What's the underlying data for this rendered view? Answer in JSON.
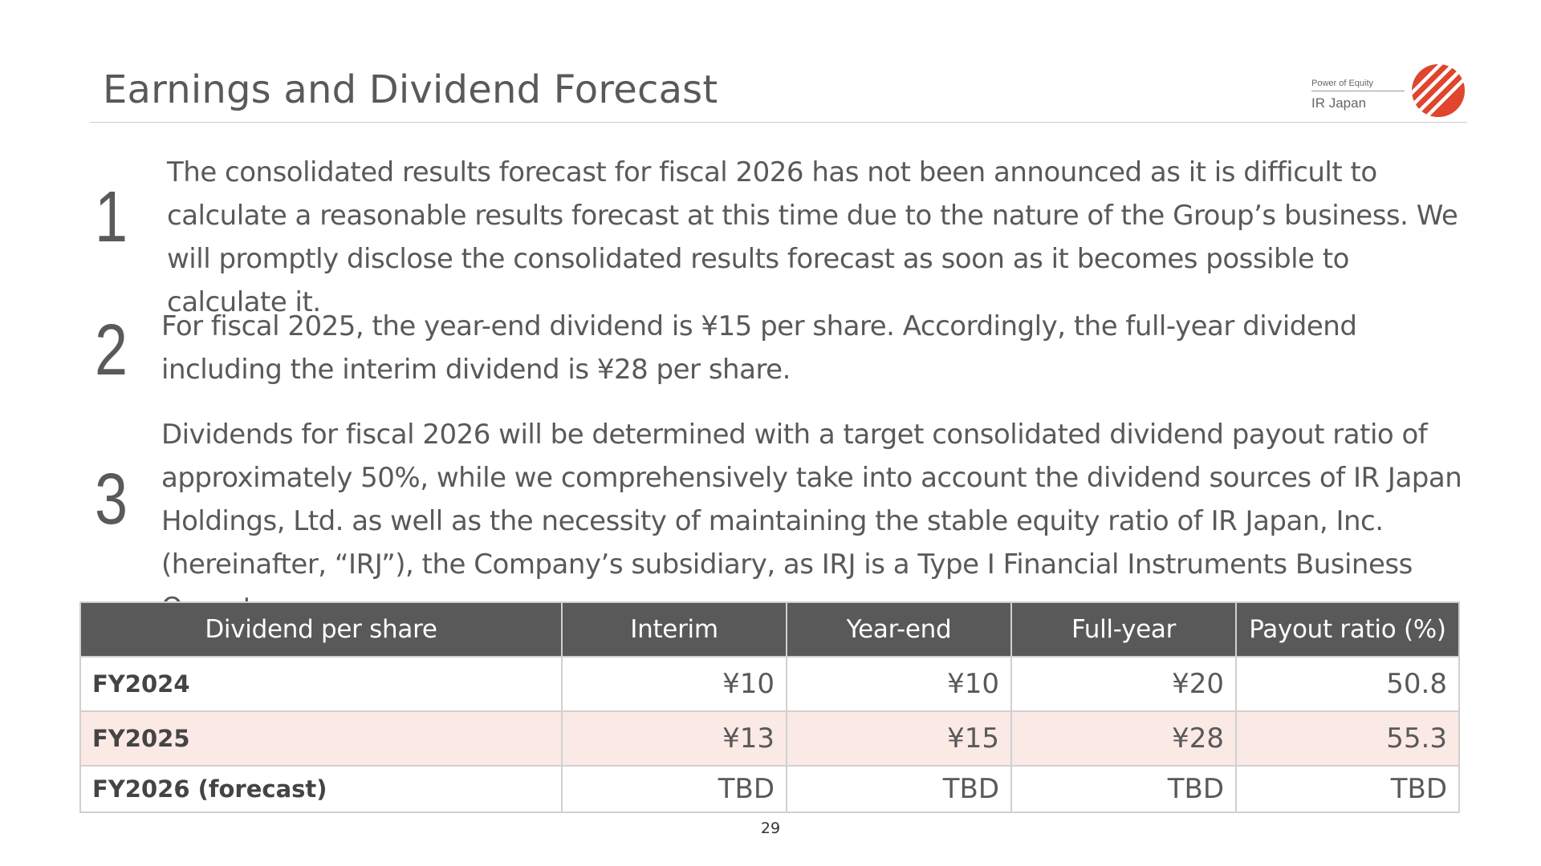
{
  "header": {
    "title": "Earnings and Dividend Forecast",
    "logo_tagline": "Power of Equity",
    "logo_name": "IR Japan",
    "logo_icon": "diagonal-stripes-circle-icon",
    "logo_color": "#e0452e"
  },
  "points": [
    {
      "number": "1",
      "text": "The consolidated results forecast for fiscal 2026 has not been announced as it is difficult to calculate a reasonable results forecast at this time due to the nature of the Group’s business. We will promptly disclose the consolidated results forecast as soon as it becomes possible to calculate it."
    },
    {
      "number": "2",
      "text": "For fiscal 2025, the year-end dividend is ¥15 per share. Accordingly, the full-year dividend including the interim dividend is ¥28 per share."
    },
    {
      "number": "3",
      "text": "Dividends for fiscal 2026 will be determined with a target consolidated dividend payout ratio of approximately 50%, while we comprehensively take into account the dividend sources of IR Japan Holdings, Ltd. as well as the necessity of maintaining the stable equity ratio of IR Japan, Inc. (hereinafter, “IRJ”), the Company’s subsidiary, as IRJ is a Type I Financial Instruments Business Operator."
    }
  ],
  "table": {
    "headers": [
      "Dividend per share",
      "Interim",
      "Year-end",
      "Full-year",
      "Payout ratio (%)"
    ],
    "rows": [
      {
        "cells": [
          "FY2024",
          "¥10",
          "¥10",
          "¥20",
          "50.8"
        ],
        "highlight": false
      },
      {
        "cells": [
          "FY2025",
          "¥13",
          "¥15",
          "¥28",
          "55.3"
        ],
        "highlight": true
      },
      {
        "cells": [
          "FY2026 (forecast)",
          "TBD",
          "TBD",
          "TBD",
          "TBD"
        ],
        "highlight": false
      }
    ],
    "header_color": "#595959",
    "highlight_color": "#fbe9e5"
  },
  "footer": {
    "page_number": "29"
  }
}
